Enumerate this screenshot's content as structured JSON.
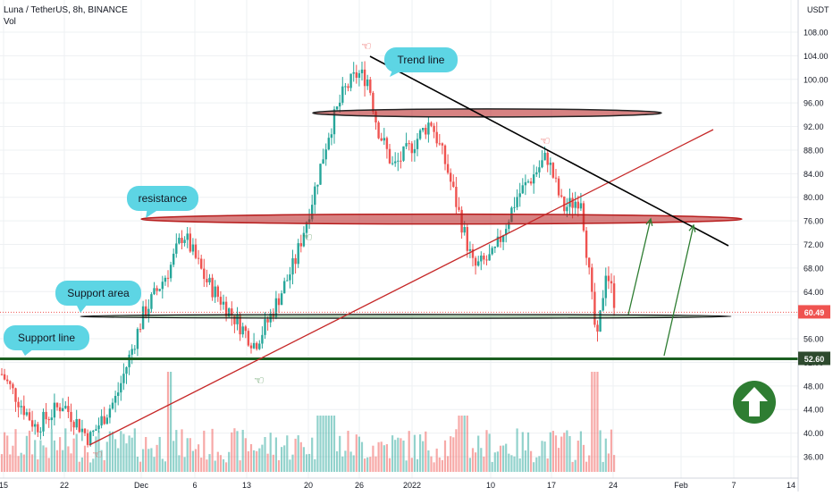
{
  "header": {
    "symbol": "Luna / TetherUS, 8h, BINANCE",
    "volume_label": "Vol"
  },
  "price_axis": {
    "currency": "USDT",
    "current_price": "60.49",
    "marked_price": "52.60"
  },
  "chart_data": {
    "type": "candlestick",
    "title": "Luna / TetherUS, 8h, BINANCE",
    "ylabel": "USDT",
    "ylim": [
      34,
      110
    ],
    "y_ticks": [
      "36.00",
      "40.00",
      "44.00",
      "48.00",
      "52.00",
      "56.00",
      "60.00",
      "64.00",
      "68.00",
      "72.00",
      "76.00",
      "80.00",
      "84.00",
      "88.00",
      "92.00",
      "96.00",
      "100.00",
      "104.00",
      "108.00"
    ],
    "x_ticks": [
      "15",
      "22",
      "Dec",
      "6",
      "13",
      "20",
      "26",
      "2022",
      "10",
      "17",
      "24",
      "Feb",
      "7",
      "14"
    ],
    "grid": true,
    "series": [
      {
        "name": "Vol",
        "type": "volume"
      }
    ],
    "colors": {
      "up": "#26a69a",
      "down": "#ef5350",
      "trend": "#000000",
      "support": "#1b5e20",
      "resistance_fill": "#b71c1c"
    },
    "annotations": [
      {
        "label": "Trend line",
        "kind": "trendline",
        "from_x": "Dec 27",
        "from_y": 103.5,
        "to_x": "Feb 1",
        "to_y": 71.5
      },
      {
        "label": "resistance",
        "kind": "zone",
        "y": 76.3
      },
      {
        "label": "Support area",
        "kind": "zone",
        "y": 59.8
      },
      {
        "label": "Support line",
        "kind": "hline",
        "y": 52.6
      },
      {
        "label": "",
        "kind": "zone",
        "y": 94.3
      }
    ],
    "last_price": 60.49
  },
  "colors": {
    "up": "#26a69a",
    "down": "#ef5350",
    "accent_badge": "#ef5350",
    "support_badge": "#1b5e20"
  }
}
